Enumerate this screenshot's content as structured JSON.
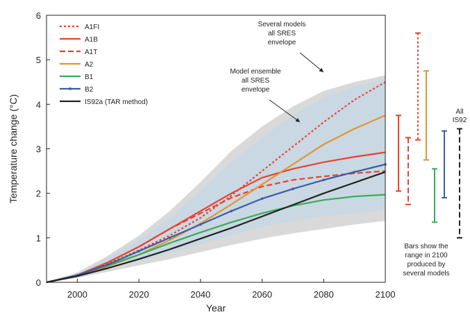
{
  "chart_data": {
    "type": "line",
    "title": "",
    "xlabel": "Year",
    "ylabel": "Temperature change (°C)",
    "xlim": [
      1990,
      2100
    ],
    "ylim": [
      0,
      6
    ],
    "xticks": [
      2000,
      2020,
      2040,
      2060,
      2080,
      2100
    ],
    "yticks": [
      0,
      1,
      2,
      3,
      4,
      5,
      6
    ],
    "grid": false,
    "legend_position": "top-left",
    "x": [
      1990,
      2000,
      2010,
      2020,
      2030,
      2040,
      2050,
      2060,
      2070,
      2080,
      2090,
      2100
    ],
    "series": [
      {
        "name": "A1FI",
        "style": "dotted",
        "color": "#e8412c",
        "values": [
          0,
          0.16,
          0.42,
          0.72,
          1.05,
          1.45,
          1.95,
          2.5,
          3.05,
          3.6,
          4.1,
          4.5
        ]
      },
      {
        "name": "A1B",
        "style": "solid",
        "color": "#e8412c",
        "values": [
          0,
          0.16,
          0.45,
          0.8,
          1.2,
          1.6,
          2.0,
          2.35,
          2.55,
          2.7,
          2.82,
          2.92
        ]
      },
      {
        "name": "A1T",
        "style": "dashed",
        "color": "#e8412c",
        "values": [
          0,
          0.16,
          0.45,
          0.8,
          1.2,
          1.55,
          1.9,
          2.15,
          2.3,
          2.38,
          2.45,
          2.5
        ]
      },
      {
        "name": "A2",
        "style": "solid",
        "color": "#e0962e",
        "values": [
          0,
          0.14,
          0.36,
          0.62,
          0.95,
          1.32,
          1.75,
          2.2,
          2.65,
          3.1,
          3.45,
          3.75
        ]
      },
      {
        "name": "B1",
        "style": "solid",
        "color": "#3aaa5a",
        "values": [
          0,
          0.16,
          0.38,
          0.62,
          0.88,
          1.12,
          1.35,
          1.55,
          1.72,
          1.85,
          1.93,
          1.97
        ]
      },
      {
        "name": "B2",
        "style": "dot-marker",
        "color": "#3a5da8",
        "values": [
          0,
          0.16,
          0.4,
          0.7,
          1.0,
          1.3,
          1.6,
          1.88,
          2.1,
          2.3,
          2.48,
          2.65
        ]
      },
      {
        "name": "IS92a (TAR method)",
        "style": "solid",
        "color": "#222222",
        "values": [
          0,
          0.14,
          0.32,
          0.52,
          0.74,
          0.98,
          1.22,
          1.48,
          1.74,
          2.0,
          2.24,
          2.48
        ]
      }
    ],
    "envelopes": [
      {
        "label": "Model ensemble all SRES envelope",
        "color": "#c9d8e2",
        "x": [
          1990,
          2000,
          2010,
          2020,
          2030,
          2040,
          2050,
          2060,
          2070,
          2080,
          2090,
          2100
        ],
        "lower": [
          0,
          0.12,
          0.3,
          0.48,
          0.66,
          0.86,
          1.06,
          1.24,
          1.38,
          1.48,
          1.55,
          1.62
        ],
        "upper": [
          0,
          0.2,
          0.55,
          0.95,
          1.45,
          2.05,
          2.7,
          3.25,
          3.75,
          4.15,
          4.4,
          4.55
        ]
      },
      {
        "label": "Several models all SRES envelope",
        "color": "#d9d9d9",
        "x": [
          1990,
          2000,
          2010,
          2020,
          2030,
          2040,
          2050,
          2060,
          2070,
          2080,
          2090,
          2100
        ],
        "lower": [
          0,
          0.1,
          0.24,
          0.38,
          0.52,
          0.68,
          0.84,
          0.98,
          1.1,
          1.2,
          1.3,
          1.38
        ],
        "upper": [
          0,
          0.22,
          0.6,
          1.05,
          1.6,
          2.25,
          2.95,
          3.5,
          3.95,
          4.3,
          4.5,
          4.65
        ]
      }
    ],
    "range_bars_2100": [
      {
        "series": "A1FI",
        "color": "#e8412c",
        "style": "dotted",
        "low": 3.2,
        "high": 5.6
      },
      {
        "series": "A1B",
        "color": "#e8412c",
        "style": "solid",
        "low": 2.05,
        "high": 3.75
      },
      {
        "series": "A1T",
        "color": "#e8412c",
        "style": "dashed",
        "low": 1.75,
        "high": 3.25
      },
      {
        "series": "A2",
        "color": "#e0962e",
        "style": "solid",
        "low": 2.75,
        "high": 4.75
      },
      {
        "series": "B1",
        "color": "#3aaa5a",
        "style": "solid",
        "low": 1.35,
        "high": 2.55
      },
      {
        "series": "B2",
        "color": "#3a5da8",
        "style": "solid",
        "low": 1.9,
        "high": 3.4
      },
      {
        "series": "All IS92",
        "color": "#222222",
        "style": "dashed",
        "low": 1.0,
        "high": 3.45
      }
    ],
    "annotations": {
      "several_models": [
        "Several models",
        "all SRES",
        "envelope"
      ],
      "model_ensemble": [
        "Model ensemble",
        "all SRES",
        "envelope"
      ],
      "all_is92": [
        "All",
        "IS92"
      ],
      "bars_note": [
        "Bars show the",
        "range in 2100",
        "produced by",
        "several models"
      ]
    }
  }
}
